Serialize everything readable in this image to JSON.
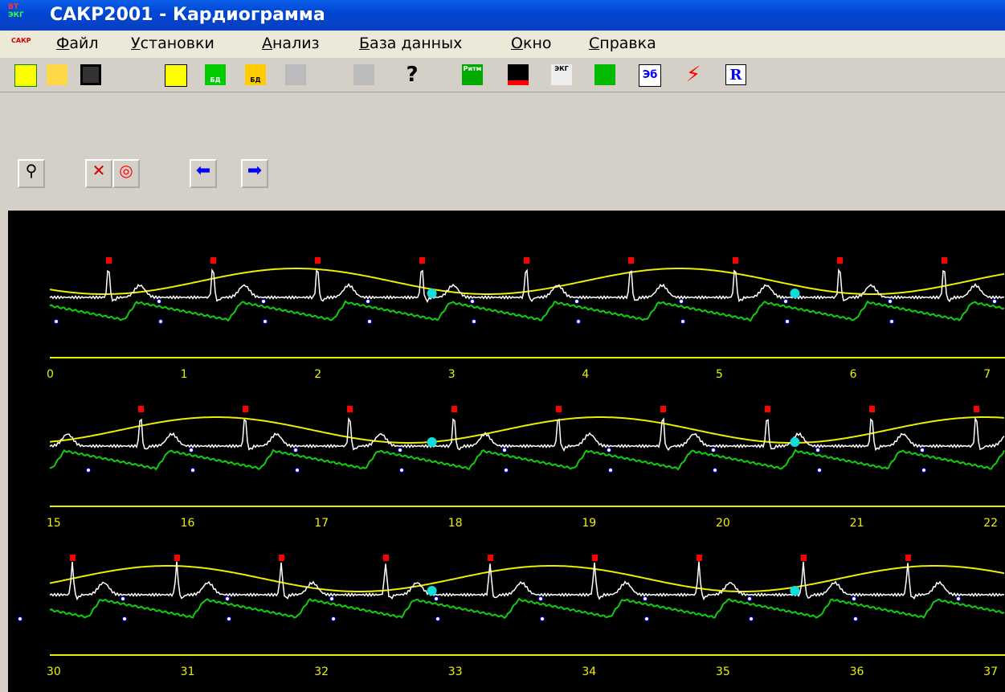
{
  "window": {
    "title": "САКР2001 - Кардиограмма",
    "logo_top": "ВТ",
    "logo_bottom": "ЭКГ",
    "menu_logo": "САКР"
  },
  "menu": [
    "Файл",
    "Установки",
    "Анализ",
    "База данных",
    "Окно",
    "Справка"
  ],
  "toolbar": {
    "db": "БД",
    "rhythm": "Ритм",
    "ecg": "ЭКГ",
    "eb": "Эб",
    "r": "R"
  },
  "strips": [
    {
      "ticks": [
        0,
        1,
        2,
        3,
        4,
        5,
        6,
        7
      ]
    },
    {
      "ticks": [
        15,
        16,
        17,
        18,
        19,
        20,
        21,
        22
      ]
    },
    {
      "ticks": [
        30,
        31,
        32,
        33,
        34,
        35,
        36,
        37
      ]
    }
  ]
}
